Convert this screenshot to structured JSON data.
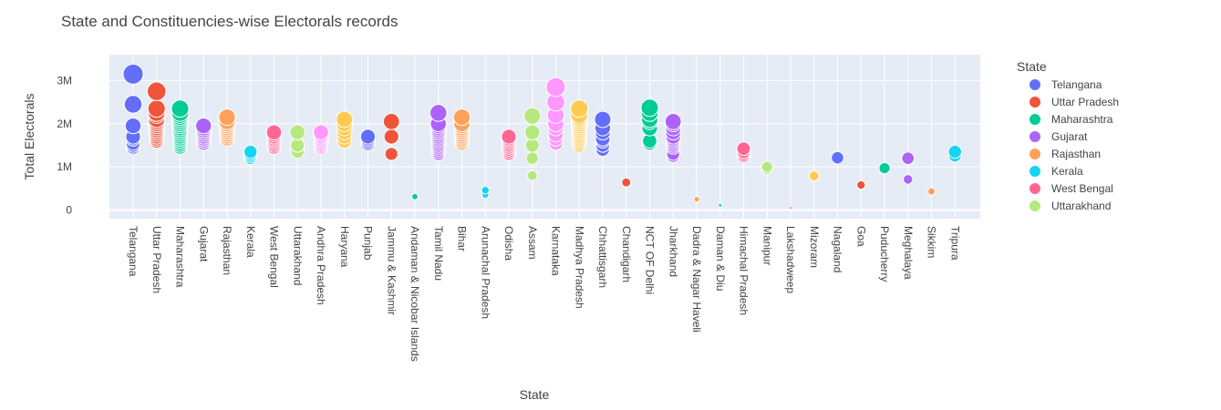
{
  "chart_data": {
    "type": "scatter",
    "title": "State and Constituencies-wise Electorals records",
    "xlabel": "State",
    "ylabel": "Total Electorals",
    "ylim": [
      -200000,
      3600000
    ],
    "yticks": [
      {
        "value": 0,
        "label": "0"
      },
      {
        "value": 1000000,
        "label": "1M"
      },
      {
        "value": 2000000,
        "label": "2M"
      },
      {
        "value": 3000000,
        "label": "3M"
      }
    ],
    "categories": [
      "Telangana",
      "Uttar Pradesh",
      "Maharashtra",
      "Gujarat",
      "Rajasthan",
      "Kerala",
      "West Bengal",
      "Uttarakhand",
      "Andhra Pradesh",
      "Haryana",
      "Punjab",
      "Jammu & Kashmir",
      "Andaman & Nicobar Islands",
      "Tamil Nadu",
      "Bihar",
      "Arunachal Pradesh",
      "Odisha",
      "Assam",
      "Karnataka",
      "Madhya Pradesh",
      "Chhattisgarh",
      "Chandigarh",
      "NCT OF Delhi",
      "Jharkhand",
      "Dadra & Nagar Haveli",
      "Daman & Diu",
      "Himachal Pradesh",
      "Manipur",
      "Lakshadweep",
      "Mizoram",
      "Nagaland",
      "Goa",
      "Puducherry",
      "Meghalaya",
      "Sikkim",
      "Tripura"
    ],
    "grid": true,
    "legend": {
      "title": "State",
      "position": "right"
    },
    "series": [
      {
        "name": "Telangana",
        "color": "#636efa",
        "values": [
          1450000,
          1500000,
          1550000,
          1650000,
          1700000,
          1950000,
          2450000,
          3150000
        ]
      },
      {
        "name": "Uttar Pradesh",
        "color": "#ef553b",
        "values": [
          1600000,
          1650000,
          1700000,
          1750000,
          1800000,
          1850000,
          1900000,
          1950000,
          2000000,
          2050000,
          2100000,
          2200000,
          2250000,
          2350000,
          2750000
        ]
      },
      {
        "name": "Maharashtra",
        "color": "#00cc96",
        "values": [
          1450000,
          1500000,
          1550000,
          1600000,
          1650000,
          1700000,
          1750000,
          1800000,
          1850000,
          1900000,
          1950000,
          2000000,
          2050000,
          2100000,
          2150000,
          2200000,
          2250000,
          2350000
        ]
      },
      {
        "name": "Gujarat",
        "color": "#ab63fa",
        "values": [
          1550000,
          1600000,
          1650000,
          1700000,
          1750000,
          1800000,
          1850000,
          1900000,
          1950000
        ]
      },
      {
        "name": "Rajasthan",
        "color": "#ffa15a",
        "values": [
          1650000,
          1700000,
          1750000,
          1800000,
          1850000,
          1900000,
          1950000,
          2000000,
          2050000,
          2150000
        ]
      },
      {
        "name": "Kerala",
        "color": "#19d3f3",
        "values": [
          1200000,
          1250000,
          1300000,
          1350000
        ]
      },
      {
        "name": "West Bengal",
        "color": "#ff6692",
        "values": [
          1450000,
          1500000,
          1550000,
          1600000,
          1650000,
          1700000,
          1750000,
          1800000
        ]
      },
      {
        "name": "Uttarakhand",
        "color": "#b6e880",
        "values": [
          1350000,
          1500000,
          1800000
        ]
      },
      {
        "name": "Andhra Pradesh",
        "color": "#ff97ff",
        "values": [
          1450000,
          1500000,
          1550000,
          1600000,
          1650000,
          1700000,
          1750000,
          1800000
        ]
      },
      {
        "name": "Haryana",
        "color": "#fecb52",
        "values": [
          1600000,
          1700000,
          1800000,
          1900000,
          2000000,
          2100000
        ]
      },
      {
        "name": "Punjab",
        "color": "#636efa",
        "values": [
          1550000,
          1600000,
          1650000,
          1700000
        ]
      },
      {
        "name": "Jammu & Kashmir",
        "color": "#ef553b",
        "values": [
          1300000,
          1700000,
          2050000
        ]
      },
      {
        "name": "Andaman & Nicobar Islands",
        "color": "#00cc96",
        "values": [
          310000
        ]
      },
      {
        "name": "Tamil Nadu",
        "color": "#ab63fa",
        "values": [
          1300000,
          1350000,
          1400000,
          1450000,
          1500000,
          1550000,
          1600000,
          1650000,
          1700000,
          1750000,
          1800000,
          1850000,
          1900000,
          1950000,
          2000000,
          2250000
        ]
      },
      {
        "name": "Bihar",
        "color": "#ffa15a",
        "values": [
          1550000,
          1600000,
          1650000,
          1700000,
          1750000,
          1800000,
          1850000,
          1900000,
          1950000,
          2000000,
          2150000
        ]
      },
      {
        "name": "Arunachal Pradesh",
        "color": "#19d3f3",
        "values": [
          350000,
          460000
        ]
      },
      {
        "name": "Odisha",
        "color": "#ff6692",
        "values": [
          1300000,
          1350000,
          1400000,
          1450000,
          1500000,
          1550000,
          1600000,
          1650000,
          1700000
        ]
      },
      {
        "name": "Assam",
        "color": "#b6e880",
        "values": [
          800000,
          1200000,
          1500000,
          1800000,
          2180000
        ]
      },
      {
        "name": "Karnataka",
        "color": "#ff97ff",
        "values": [
          1550000,
          1650000,
          1750000,
          1900000,
          2000000,
          2200000,
          2500000,
          2850000
        ]
      },
      {
        "name": "Madhya Pradesh",
        "color": "#fecb52",
        "values": [
          1500000,
          1550000,
          1600000,
          1650000,
          1700000,
          1750000,
          1800000,
          1850000,
          1900000,
          1950000,
          2000000,
          2050000,
          2100000,
          2150000,
          2200000,
          2350000
        ]
      },
      {
        "name": "Chhattisgarh",
        "color": "#636efa",
        "values": [
          1400000,
          1500000,
          1600000,
          1650000,
          1800000,
          1900000,
          2100000
        ]
      },
      {
        "name": "Chandigarh",
        "color": "#ef553b",
        "values": [
          640000
        ]
      },
      {
        "name": "NCT OF Delhi",
        "color": "#00cc96",
        "values": [
          1550000,
          1600000,
          1900000,
          2050000,
          2100000,
          2250000,
          2370000
        ]
      },
      {
        "name": "Jharkhand",
        "color": "#ab63fa",
        "values": [
          1250000,
          1300000,
          1450000,
          1500000,
          1550000,
          1600000,
          1650000,
          1700000,
          1800000,
          1900000,
          2000000,
          2050000
        ]
      },
      {
        "name": "Dadra & Nagar Haveli",
        "color": "#ffa15a",
        "values": [
          250000
        ]
      },
      {
        "name": "Daman & Diu",
        "color": "#19d3f3",
        "values": [
          110000
        ]
      },
      {
        "name": "Himachal Pradesh",
        "color": "#ff6692",
        "values": [
          1250000,
          1300000,
          1350000,
          1420000
        ]
      },
      {
        "name": "Manipur",
        "color": "#b6e880",
        "values": [
          950000,
          1000000
        ]
      },
      {
        "name": "Lakshadweep",
        "color": "#ff97ff",
        "values": [
          50000
        ]
      },
      {
        "name": "Mizoram",
        "color": "#fecb52",
        "values": [
          790000
        ]
      },
      {
        "name": "Nagaland",
        "color": "#636efa",
        "values": [
          1210000
        ]
      },
      {
        "name": "Goa",
        "color": "#ef553b",
        "values": [
          570000,
          580000
        ]
      },
      {
        "name": "Puducherry",
        "color": "#00cc96",
        "values": [
          970000
        ]
      },
      {
        "name": "Meghalaya",
        "color": "#ab63fa",
        "values": [
          710000,
          1200000
        ]
      },
      {
        "name": "Sikkim",
        "color": "#ffa15a",
        "values": [
          430000
        ]
      },
      {
        "name": "Tripura",
        "color": "#19d3f3",
        "values": [
          1260000,
          1350000
        ]
      }
    ],
    "legend_items": [
      {
        "label": "Telangana",
        "color": "#636efa"
      },
      {
        "label": "Uttar Pradesh",
        "color": "#ef553b"
      },
      {
        "label": "Maharashtra",
        "color": "#00cc96"
      },
      {
        "label": "Gujarat",
        "color": "#ab63fa"
      },
      {
        "label": "Rajasthan",
        "color": "#ffa15a"
      },
      {
        "label": "Kerala",
        "color": "#19d3f3"
      },
      {
        "label": "West Bengal",
        "color": "#ff6692"
      },
      {
        "label": "Uttarakhand",
        "color": "#b6e880"
      }
    ],
    "colors": {
      "plot_background": "#e5ecf6",
      "grid": "#ffffff",
      "text": "#444444"
    }
  }
}
